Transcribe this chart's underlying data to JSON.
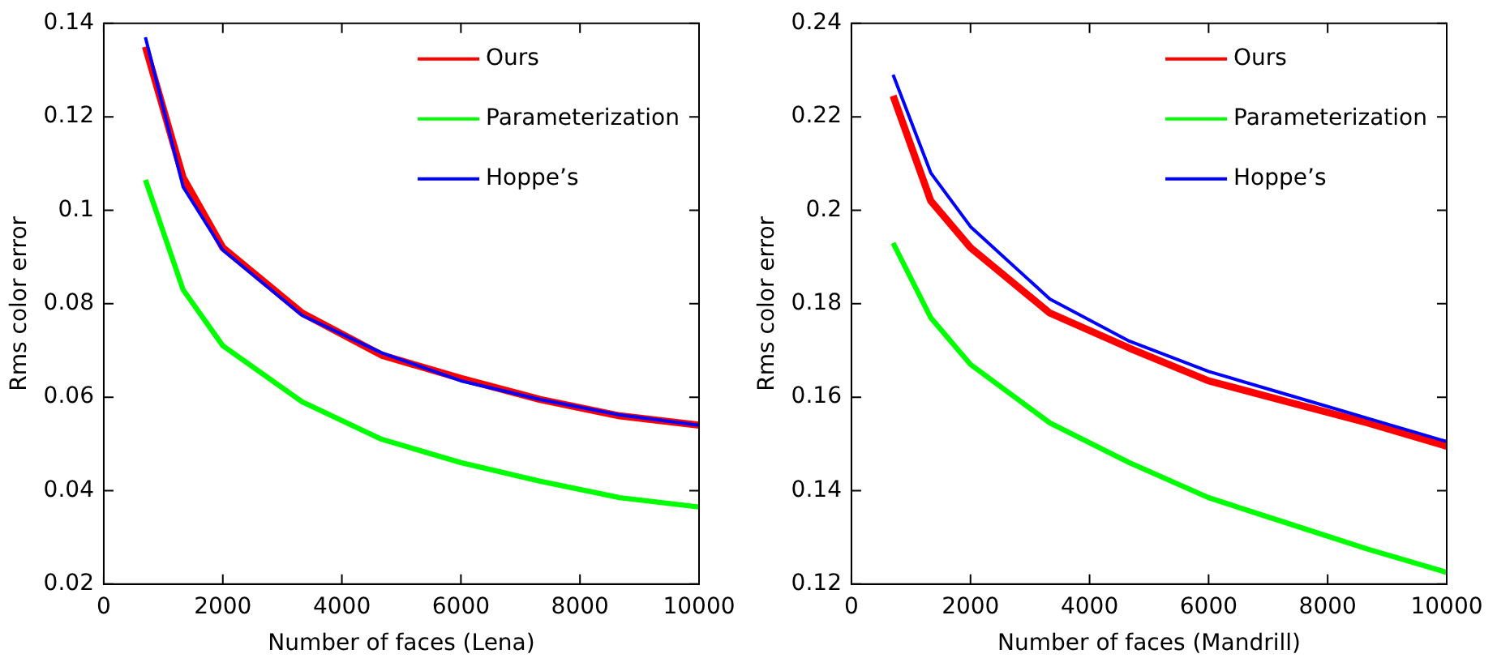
{
  "chart_data": [
    {
      "type": "line",
      "xlabel": "Number of faces (Lena)",
      "ylabel": "Rms color error",
      "x": [
        700,
        1333,
        2000,
        3333,
        4667,
        6000,
        7333,
        8667,
        10000
      ],
      "xlim": [
        0,
        10000
      ],
      "xticks": [
        0,
        2000,
        4000,
        6000,
        8000,
        10000
      ],
      "ylim": [
        0.02,
        0.14
      ],
      "yticks": [
        0.02,
        0.04,
        0.06,
        0.08,
        0.1,
        0.12,
        0.14
      ],
      "grid": false,
      "legend": "top right",
      "series": [
        {
          "name": "Ours",
          "color": "#ff0000",
          "values": [
            0.135,
            0.107,
            0.092,
            0.078,
            0.069,
            0.064,
            0.0595,
            0.056,
            0.054
          ]
        },
        {
          "name": "Parameterization",
          "color": "#00ff00",
          "values": [
            0.1065,
            0.083,
            0.071,
            0.059,
            0.051,
            0.046,
            0.042,
            0.0385,
            0.0365
          ]
        },
        {
          "name": "Hoppe’s",
          "color": "#0000ff",
          "values": [
            0.137,
            0.105,
            0.0915,
            0.0775,
            0.0695,
            0.0635,
            0.0595,
            0.0562,
            0.054
          ]
        }
      ]
    },
    {
      "type": "line",
      "xlabel": "Number of faces (Mandrill)",
      "ylabel": "Rms color error",
      "x": [
        700,
        1333,
        2000,
        3333,
        4667,
        6000,
        7333,
        8667,
        10000
      ],
      "xlim": [
        0,
        10000
      ],
      "xticks": [
        0,
        2000,
        4000,
        6000,
        8000,
        10000
      ],
      "ylim": [
        0.12,
        0.24
      ],
      "yticks": [
        0.12,
        0.14,
        0.16,
        0.18,
        0.2,
        0.22,
        0.24
      ],
      "grid": false,
      "legend": "top right",
      "series": [
        {
          "name": "Ours",
          "color": "#ff0000",
          "values": [
            0.2245,
            0.202,
            0.192,
            0.178,
            0.1705,
            0.1635,
            0.159,
            0.1545,
            0.1495
          ]
        },
        {
          "name": "Parameterization",
          "color": "#00ff00",
          "values": [
            0.193,
            0.177,
            0.167,
            0.1545,
            0.146,
            0.1385,
            0.133,
            0.1275,
            0.1225
          ]
        },
        {
          "name": "Hoppe’s",
          "color": "#0000ff",
          "values": [
            0.229,
            0.208,
            0.1965,
            0.181,
            0.172,
            0.1655,
            0.1605,
            0.1555,
            0.1505
          ]
        }
      ]
    }
  ]
}
